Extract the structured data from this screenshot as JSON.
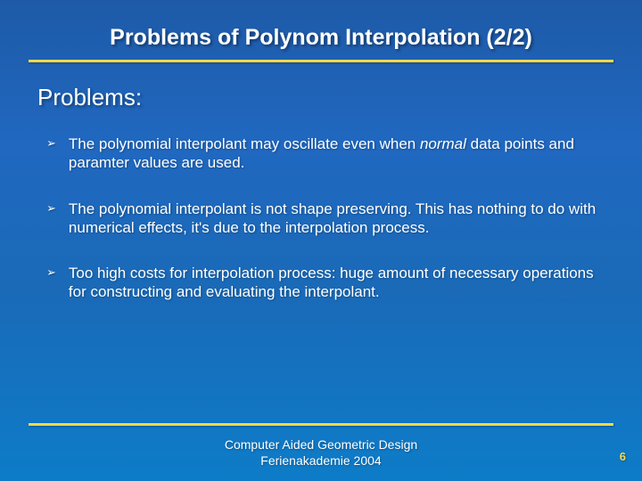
{
  "title": "Problems of Polynom Interpolation (2/2)",
  "subtitle": "Problems:",
  "bullets": [
    {
      "pre": "The polynomial interpolant may oscillate even when ",
      "italic": "normal",
      "post": " data points and paramter values are used."
    },
    {
      "pre": "The polynomial interpolant is not shape preserving. This has nothing to do with numerical effects, it's due to the interpolation process.",
      "italic": "",
      "post": ""
    },
    {
      "pre": "Too high costs for interpolation process: huge amount of necessary operations  for constructing and evaluating the interpolant.",
      "italic": "",
      "post": ""
    }
  ],
  "footer_line1": "Computer Aided Geometric Design",
  "footer_line2": "Ferienakademie 2004",
  "page_number": "6",
  "colors": {
    "accent": "#f7d84a",
    "text": "#ffffff",
    "bg_top": "#1e5aa8",
    "bg_bottom": "#0d7cc8"
  },
  "bullet_marker": "➢"
}
